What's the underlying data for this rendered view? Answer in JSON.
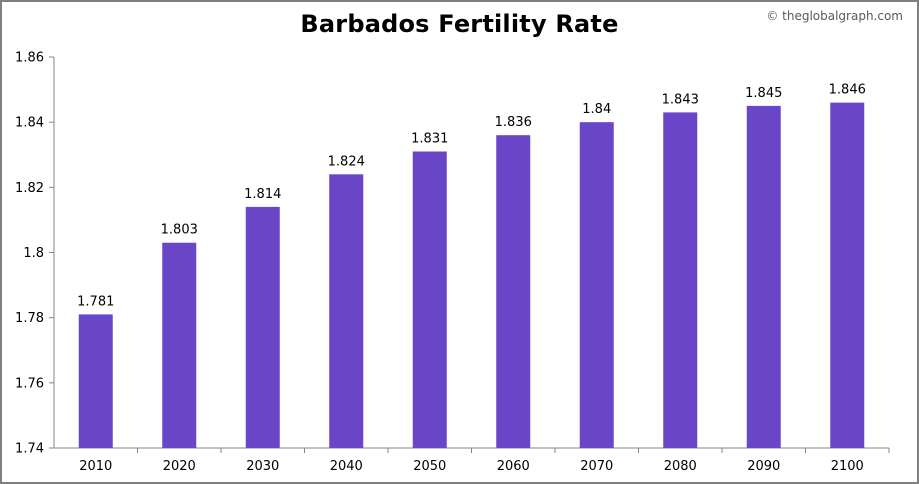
{
  "chart_data": {
    "type": "bar",
    "title": "Barbados Fertility Rate",
    "credit": "© theglobalgraph.com",
    "xlabel": "",
    "ylabel": "",
    "categories": [
      "2010",
      "2020",
      "2030",
      "2040",
      "2050",
      "2060",
      "2070",
      "2080",
      "2090",
      "2100"
    ],
    "values": [
      1.781,
      1.803,
      1.814,
      1.824,
      1.831,
      1.836,
      1.84,
      1.843,
      1.845,
      1.846
    ],
    "data_labels": [
      "1.781",
      "1.803",
      "1.814",
      "1.824",
      "1.831",
      "1.836",
      "1.84",
      "1.843",
      "1.845",
      "1.846"
    ],
    "ylim": [
      1.74,
      1.86
    ],
    "yticks": [
      1.74,
      1.76,
      1.78,
      1.8,
      1.82,
      1.84,
      1.86
    ],
    "ytick_labels": [
      "1.74",
      "1.76",
      "1.78",
      "1.8",
      "1.82",
      "1.84",
      "1.86"
    ],
    "grid": false,
    "legend": "none",
    "bar_color": "#6946c8",
    "axis_color": "#868686"
  }
}
